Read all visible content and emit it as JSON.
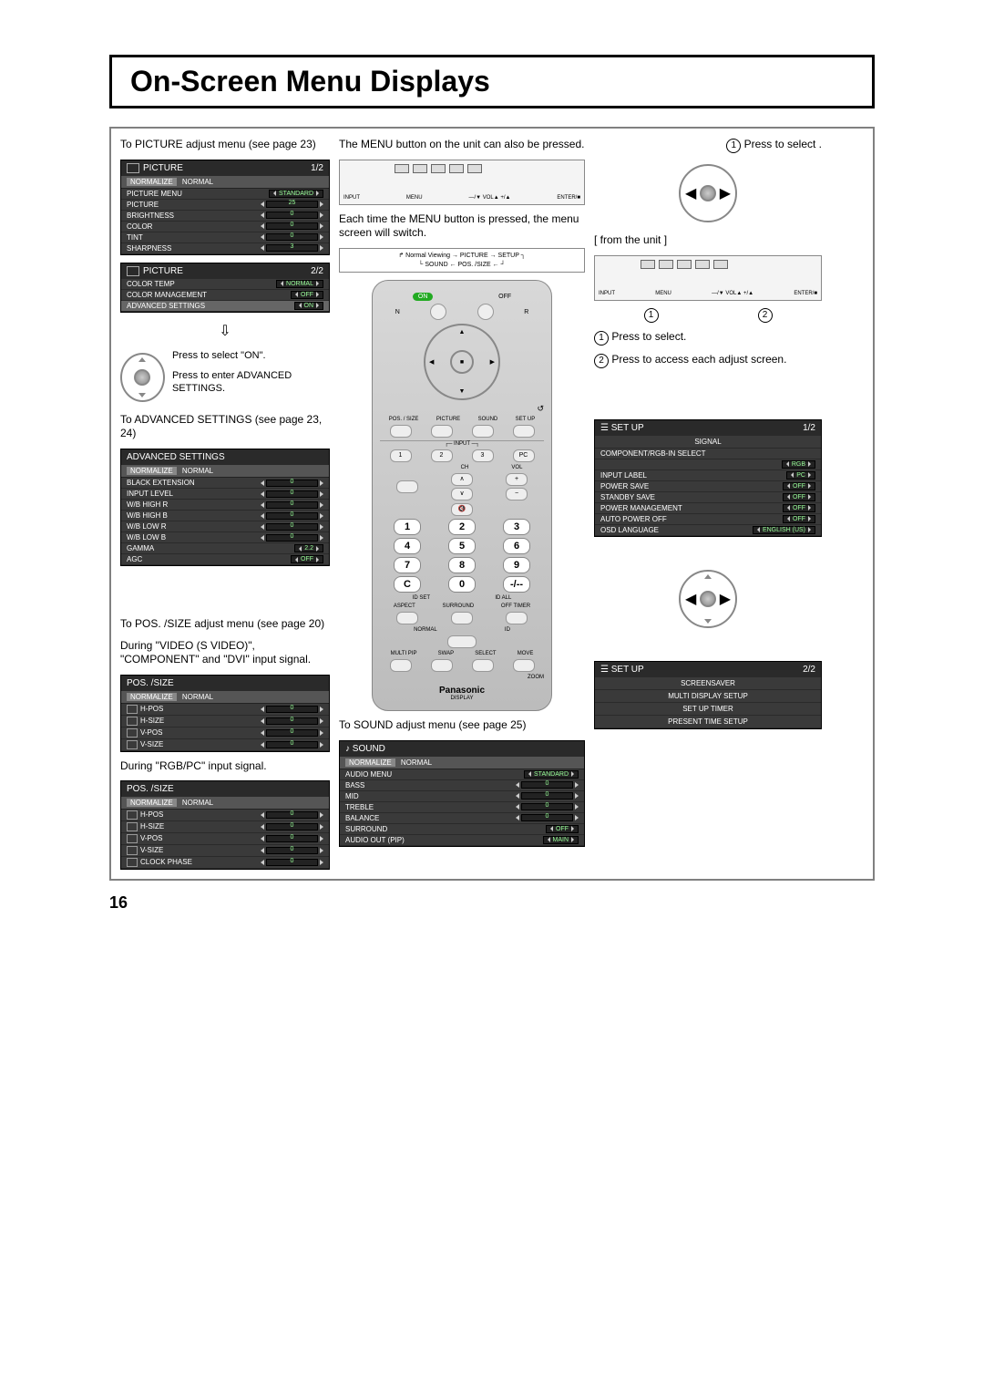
{
  "page_number": "16",
  "title": "On-Screen Menu Displays",
  "left": {
    "picture_caption": "To PICTURE adjust menu (see page 23)",
    "picture1": {
      "header": "PICTURE",
      "page": "1/2",
      "normalize_label": "NORMALIZE",
      "normalize_value": "NORMAL",
      "rows": [
        {
          "label": "PICTURE MENU",
          "value": "STANDARD",
          "type": "pill"
        },
        {
          "label": "PICTURE",
          "value": "25",
          "type": "slider"
        },
        {
          "label": "BRIGHTNESS",
          "value": "0",
          "type": "slider"
        },
        {
          "label": "COLOR",
          "value": "0",
          "type": "slider"
        },
        {
          "label": "TINT",
          "value": "0",
          "type": "slider"
        },
        {
          "label": "SHARPNESS",
          "value": "3",
          "type": "slider"
        }
      ]
    },
    "picture2": {
      "header": "PICTURE",
      "page": "2/2",
      "rows": [
        {
          "label": "COLOR TEMP",
          "value": "NORMAL",
          "type": "pill"
        },
        {
          "label": "COLOR MANAGEMENT",
          "value": "OFF",
          "type": "pill"
        },
        {
          "label": "ADVANCED SETTINGS",
          "value": "ON",
          "type": "pill",
          "hl": true
        }
      ]
    },
    "press_on": "Press to select \"ON\".",
    "press_enter": "Press to enter ADVANCED SETTINGS.",
    "adv_caption": "To ADVANCED SETTINGS (see page 23, 24)",
    "advanced": {
      "header": "ADVANCED SETTINGS",
      "normalize_label": "NORMALIZE",
      "normalize_value": "NORMAL",
      "rows": [
        {
          "label": "BLACK EXTENSION",
          "value": "0",
          "type": "slider"
        },
        {
          "label": "INPUT LEVEL",
          "value": "0",
          "type": "slider"
        },
        {
          "label": "W/B HIGH R",
          "value": "0",
          "type": "slider"
        },
        {
          "label": "W/B HIGH B",
          "value": "0",
          "type": "slider"
        },
        {
          "label": "W/B LOW R",
          "value": "0",
          "type": "slider"
        },
        {
          "label": "W/B LOW B",
          "value": "0",
          "type": "slider"
        },
        {
          "label": "GAMMA",
          "value": "2.2",
          "type": "pill"
        },
        {
          "label": "AGC",
          "value": "OFF",
          "type": "pill"
        }
      ]
    },
    "pos_caption": "To POS. /SIZE adjust menu (see page 20)",
    "pos_during1": "During \"VIDEO (S VIDEO)\", \"COMPONENT\" and \"DVI\" input signal.",
    "pos1": {
      "header": "POS. /SIZE",
      "normalize_label": "NORMALIZE",
      "normalize_value": "NORMAL",
      "rows": [
        {
          "label": "H-POS",
          "value": "0",
          "type": "slider"
        },
        {
          "label": "H-SIZE",
          "value": "0",
          "type": "slider"
        },
        {
          "label": "V-POS",
          "value": "0",
          "type": "slider"
        },
        {
          "label": "V-SIZE",
          "value": "0",
          "type": "slider"
        }
      ]
    },
    "pos_during2": "During \"RGB/PC\" input signal.",
    "pos2": {
      "header": "POS. /SIZE",
      "normalize_label": "NORMALIZE",
      "normalize_value": "NORMAL",
      "rows": [
        {
          "label": "H-POS",
          "value": "0",
          "type": "slider"
        },
        {
          "label": "H-SIZE",
          "value": "0",
          "type": "slider"
        },
        {
          "label": "V-POS",
          "value": "0",
          "type": "slider"
        },
        {
          "label": "V-SIZE",
          "value": "0",
          "type": "slider"
        },
        {
          "label": "CLOCK PHASE",
          "value": "0",
          "type": "slider"
        }
      ]
    }
  },
  "mid": {
    "top_caption": "The MENU button on the unit can also be pressed.",
    "unit_labels": [
      "INPUT",
      "MENU",
      "—/▼ VOL▲ +/▲",
      "ENTER/■"
    ],
    "switch_caption": "Each time the MENU button is pressed, the menu screen will switch.",
    "flow": "Normal Viewing → PICTURE → SETUP",
    "flow2": "SOUND ← POS. /SIZE ←",
    "remote": {
      "on": "ON",
      "off": "OFF",
      "n": "N",
      "r": "R",
      "strip": [
        "POS. / SIZE",
        "PICTURE",
        "SOUND",
        "SET UP"
      ],
      "input_row": [
        "1",
        "2",
        "3",
        "PC"
      ],
      "input_label": "INPUT",
      "ch": "CH",
      "vol": "VOL",
      "nums": [
        "1",
        "2",
        "3",
        "4",
        "5",
        "6",
        "7",
        "8",
        "9",
        "C",
        "0",
        "-/--"
      ],
      "idset": "ID SET",
      "idall": "ID ALL",
      "aspect": "ASPECT",
      "surround": "SURROUND",
      "offtimer": "OFF TIMER",
      "normal": "NORMAL",
      "id": "ID",
      "multipip": "MULTI PIP",
      "swap": "SWAP",
      "select": "SELECT",
      "move": "MOVE",
      "zoom": "ZOOM",
      "brand": "Panasonic",
      "display": "DISPLAY"
    },
    "sound_caption": "To SOUND adjust menu (see page 25)",
    "sound": {
      "header": "SOUND",
      "normalize_label": "NORMALIZE",
      "normalize_value": "NORMAL",
      "rows": [
        {
          "label": "AUDIO MENU",
          "value": "STANDARD",
          "type": "pill"
        },
        {
          "label": "BASS",
          "value": "0",
          "type": "slider"
        },
        {
          "label": "MID",
          "value": "0",
          "type": "slider"
        },
        {
          "label": "TREBLE",
          "value": "0",
          "type": "slider"
        },
        {
          "label": "BALANCE",
          "value": "0",
          "type": "slider"
        },
        {
          "label": "SURROUND",
          "value": "OFF",
          "type": "pill"
        },
        {
          "label": "AUDIO OUT (PIP)",
          "value": "MAIN",
          "type": "pill"
        }
      ]
    }
  },
  "right": {
    "press_select": "Press to select .",
    "from_unit": "[ from the unit ]",
    "step1": "Press to select.",
    "step2": "Press to access each adjust screen.",
    "setup1": {
      "header": "SET UP",
      "page": "1/2",
      "signal": "SIGNAL",
      "comp": "COMPONENT/RGB-IN SELECT",
      "comp_val": "RGB",
      "rows": [
        {
          "label": "INPUT LABEL",
          "value": "PC",
          "type": "pill"
        },
        {
          "label": "POWER SAVE",
          "value": "OFF",
          "type": "pill"
        },
        {
          "label": "STANDBY SAVE",
          "value": "OFF",
          "type": "pill"
        },
        {
          "label": "POWER MANAGEMENT",
          "value": "OFF",
          "type": "pill"
        },
        {
          "label": "AUTO POWER OFF",
          "value": "OFF",
          "type": "pill"
        },
        {
          "label": "OSD LANGUAGE",
          "value": "ENGLISH (US)",
          "type": "pill"
        }
      ]
    },
    "setup2": {
      "header": "SET UP",
      "page": "2/2",
      "rows": [
        {
          "label": "SCREENSAVER"
        },
        {
          "label": "MULTI DISPLAY SETUP"
        },
        {
          "label": "SET UP TIMER"
        },
        {
          "label": "PRESENT TIME SETUP"
        }
      ]
    },
    "num1": "1",
    "num2": "2"
  }
}
